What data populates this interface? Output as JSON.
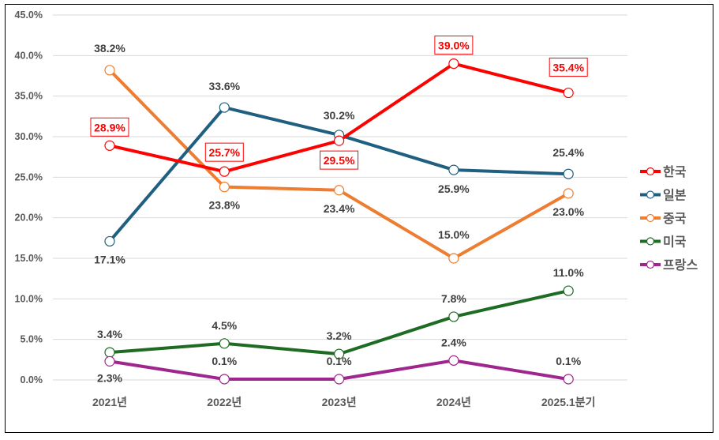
{
  "chart_data": {
    "type": "line",
    "title": "",
    "xlabel": "",
    "ylabel": "",
    "categories": [
      "2021년",
      "2022년",
      "2023년",
      "2024년",
      "2025.1분기"
    ],
    "ylim": [
      0,
      45
    ],
    "yticks": [
      "0.0%",
      "5.0%",
      "10.0%",
      "15.0%",
      "20.0%",
      "25.0%",
      "30.0%",
      "35.0%",
      "40.0%",
      "45.0%"
    ],
    "grid": true,
    "legend_position": "right",
    "series": [
      {
        "name": "한국",
        "color": "#ff0000",
        "values": [
          28.9,
          25.7,
          29.5,
          39.0,
          35.4
        ],
        "labels": [
          "28.9%",
          "25.7%",
          "29.5%",
          "39.0%",
          "35.4%"
        ],
        "highlight": true
      },
      {
        "name": "일본",
        "color": "#1f5f80",
        "values": [
          17.1,
          33.6,
          30.2,
          25.9,
          25.4
        ],
        "labels": [
          "17.1%",
          "33.6%",
          "30.2%",
          "25.9%",
          "25.4%"
        ]
      },
      {
        "name": "중국",
        "color": "#ed7d31",
        "values": [
          38.2,
          23.8,
          23.4,
          15.0,
          23.0
        ],
        "labels": [
          "38.2%",
          "23.8%",
          "23.4%",
          "15.0%",
          "23.0%"
        ]
      },
      {
        "name": "미국",
        "color": "#1e6b24",
        "values": [
          3.4,
          4.5,
          3.2,
          7.8,
          11.0
        ],
        "labels": [
          "3.4%",
          "4.5%",
          "3.2%",
          "7.8%",
          "11.0%"
        ]
      },
      {
        "name": "프랑스",
        "color": "#a0268f",
        "values": [
          2.3,
          0.1,
          0.1,
          2.4,
          0.1
        ],
        "labels": [
          "2.3%",
          "0.1%",
          "0.1%",
          "2.4%",
          "0.1%"
        ]
      }
    ]
  }
}
